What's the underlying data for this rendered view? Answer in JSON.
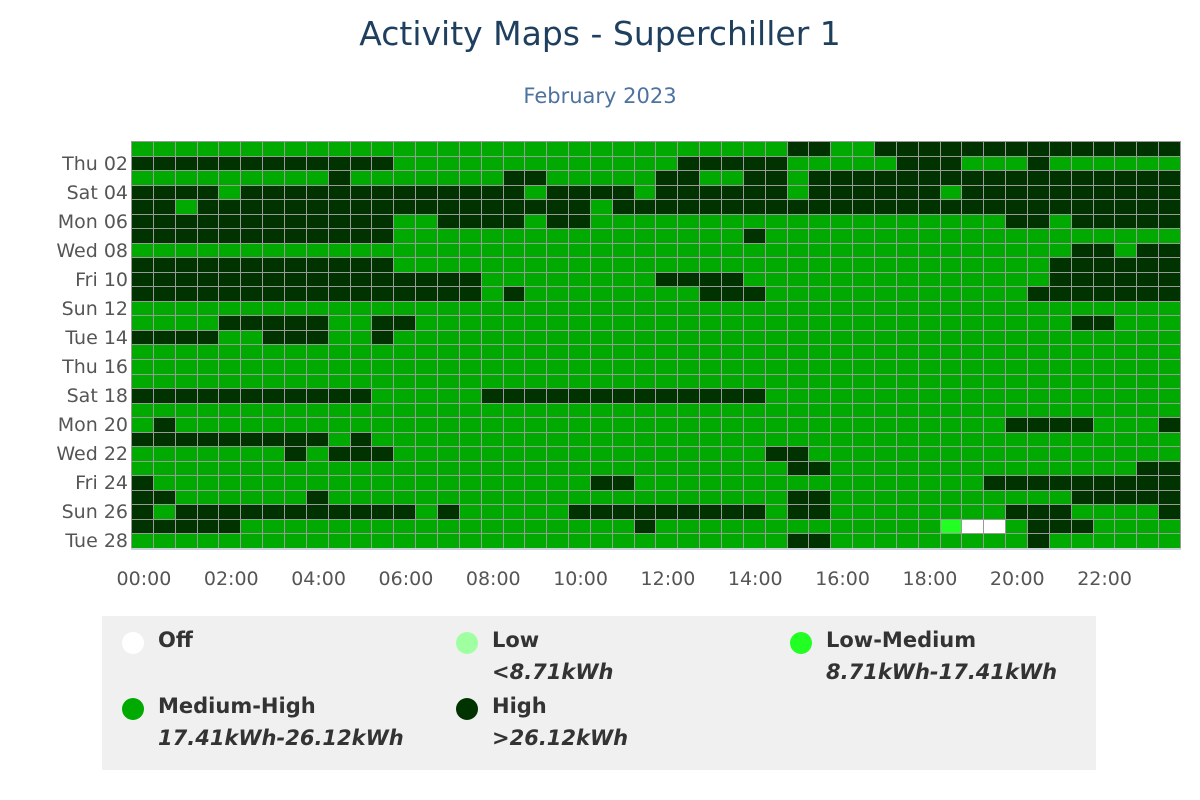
{
  "title": "Activity Maps - Superchiller 1",
  "subtitle": "February 2023",
  "legend": [
    {
      "key": "o",
      "name": "Off",
      "range": "",
      "color": "#ffffff"
    },
    {
      "key": "l",
      "name": "Low",
      "range": "<8.71kWh",
      "color": "#a0ffa0"
    },
    {
      "key": "g",
      "name": "Low-Medium",
      "range": "8.71kWh-17.41kWh",
      "color": "#22ff22"
    },
    {
      "key": "m",
      "name": "Medium-High",
      "range": "17.41kWh-26.12kWh",
      "color": "#00aa00"
    },
    {
      "key": "h",
      "name": "High",
      "range": ">26.12kWh",
      "color": "#003300"
    }
  ],
  "chart_data": {
    "type": "heatmap",
    "title": "Activity Maps - Superchiller 1",
    "subtitle": "February 2023",
    "x_description": "48 half-hour slots from 00:00 to 23:30",
    "x_tick_labels": [
      "00:00",
      "02:00",
      "04:00",
      "06:00",
      "08:00",
      "10:00",
      "12:00",
      "14:00",
      "16:00",
      "18:00",
      "20:00",
      "22:00"
    ],
    "y_tick_labels": [
      "Thu 02",
      "Sat 04",
      "Mon 06",
      "Wed 08",
      "Fri 10",
      "Sun 12",
      "Tue 14",
      "Thu 16",
      "Sat 18",
      "Mon 20",
      "Wed 22",
      "Fri 24",
      "Sun 26",
      "Tue 28"
    ],
    "rows_encoding": "run-length: count followed by category key (o=Off, l=Low, g=Low-Medium, m=Medium-High, h=High); one row per day Feb 01..Feb 28",
    "rows": [
      "30m2h2m14h",
      "12h13m5h5m3h3m1h6m",
      "9m1h7m2h5m2h2m2h1m17h",
      "4h1m13h1m4h1m6h1m6h1m10h",
      "2h1m18h1m26h",
      "12h2m4h1m2h19m2h1m5h",
      "12h16m1h19m",
      "43m2h1m2h",
      "12h30m6h",
      "16h8m4h14m6h",
      "16h1m1h8m3h12m7h",
      "48m",
      "4m5h2m2h30m2h3m",
      "4h2m3h2m1h36m",
      "48m",
      "48m",
      "48m",
      "11h5m13h19m",
      "48m",
      "1m1h38m4h3m1h",
      "9h1m1h37m",
      "7m1h1m3h17m2h17m",
      "30m2h14m2h",
      "1h20m2h16m9h",
      "2h6m1h21m2h11m5h",
      "1h1m11h1m1h5m9h1m2h8m3h4m1h",
      "5h18m1h13m1g2o1m3h4m",
      "30m2h9m1h6m"
    ]
  }
}
